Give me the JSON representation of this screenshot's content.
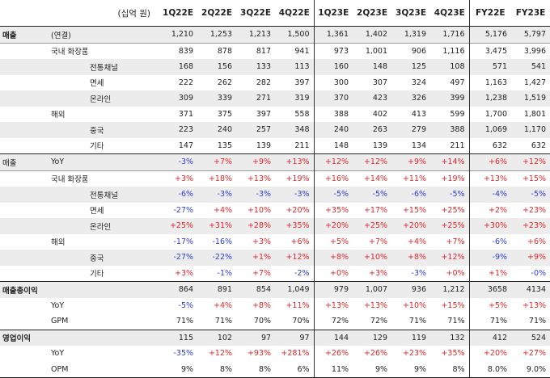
{
  "header": {
    "unit": "(십억 원)",
    "quarters": [
      "1Q22E",
      "2Q22E",
      "3Q22E",
      "4Q22E",
      "1Q23E",
      "2Q23E",
      "3Q23E",
      "4Q23E"
    ],
    "years": [
      "FY22E",
      "FY23E"
    ]
  },
  "rows": [
    {
      "c1": "매출",
      "c2": "(연결)",
      "c3": "",
      "v": [
        "1,210",
        "1,253",
        "1,213",
        "1,500",
        "1,361",
        "1,402",
        "1,319",
        "1,716",
        "5,176",
        "5,797"
      ]
    },
    {
      "c1": "",
      "c2": "국내 화장품",
      "c3": "",
      "v": [
        "839",
        "878",
        "817",
        "941",
        "973",
        "1,001",
        "906",
        "1,116",
        "3,475",
        "3,996"
      ]
    },
    {
      "c1": "",
      "c2": "",
      "c3": "전통채널",
      "v": [
        "168",
        "156",
        "133",
        "113",
        "160",
        "148",
        "125",
        "108",
        "571",
        "541"
      ]
    },
    {
      "c1": "",
      "c2": "",
      "c3": "면세",
      "v": [
        "222",
        "262",
        "282",
        "397",
        "300",
        "307",
        "324",
        "497",
        "1,163",
        "1,427"
      ]
    },
    {
      "c1": "",
      "c2": "",
      "c3": "온라인",
      "v": [
        "309",
        "339",
        "271",
        "319",
        "370",
        "423",
        "326",
        "399",
        "1,238",
        "1,519"
      ]
    },
    {
      "c1": "",
      "c2": "해외",
      "c3": "",
      "v": [
        "371",
        "375",
        "397",
        "558",
        "388",
        "402",
        "413",
        "599",
        "1,700",
        "1,801"
      ]
    },
    {
      "c1": "",
      "c2": "",
      "c3": "중국",
      "v": [
        "223",
        "240",
        "257",
        "348",
        "240",
        "263",
        "279",
        "388",
        "1,069",
        "1,170"
      ]
    },
    {
      "c1": "",
      "c2": "",
      "c3": "기타",
      "v": [
        "147",
        "135",
        "139",
        "211",
        "148",
        "139",
        "134",
        "211",
        "632",
        "632"
      ]
    },
    {
      "c1": "매출",
      "c2": "YoY",
      "c3": "",
      "v": [
        "-3%",
        "+7%",
        "+9%",
        "+13%",
        "+12%",
        "+12%",
        "+9%",
        "+14%",
        "+6%",
        "+12%"
      ]
    },
    {
      "c1": "",
      "c2": "국내 화장품",
      "c3": "",
      "v": [
        "+3%",
        "+18%",
        "+13%",
        "+19%",
        "+16%",
        "+14%",
        "+11%",
        "+19%",
        "+13%",
        "+15%"
      ]
    },
    {
      "c1": "",
      "c2": "",
      "c3": "전통채널",
      "v": [
        "-6%",
        "-3%",
        "-3%",
        "-3%",
        "-5%",
        "-5%",
        "-6%",
        "-5%",
        "-4%",
        "-5%"
      ]
    },
    {
      "c1": "",
      "c2": "",
      "c3": "면세",
      "v": [
        "-27%",
        "+4%",
        "+10%",
        "+20%",
        "+35%",
        "+17%",
        "+15%",
        "+25%",
        "+2%",
        "+23%"
      ]
    },
    {
      "c1": "",
      "c2": "",
      "c3": "온라인",
      "v": [
        "+25%",
        "+31%",
        "+28%",
        "+35%",
        "+20%",
        "+25%",
        "+20%",
        "+25%",
        "+30%",
        "+23%"
      ]
    },
    {
      "c1": "",
      "c2": "해외",
      "c3": "",
      "v": [
        "-17%",
        "-16%",
        "+3%",
        "+6%",
        "+5%",
        "+7%",
        "+4%",
        "+7%",
        "-6%",
        "+6%"
      ]
    },
    {
      "c1": "",
      "c2": "",
      "c3": "중국",
      "v": [
        "-27%",
        "-22%",
        "+1%",
        "+12%",
        "+8%",
        "+10%",
        "+8%",
        "+12%",
        "-9%",
        "+9%"
      ]
    },
    {
      "c1": "",
      "c2": "",
      "c3": "기타",
      "v": [
        "+3%",
        "-1%",
        "+7%",
        "-2%",
        "+0%",
        "+3%",
        "-3%",
        "+0%",
        "+1%",
        "-0%"
      ]
    },
    {
      "c1": "매출총이익",
      "c2": "",
      "c3": "",
      "v": [
        "864",
        "891",
        "854",
        "1,049",
        "979",
        "1,007",
        "936",
        "1,212",
        "3658",
        "4134"
      ]
    },
    {
      "c1": "",
      "c2": "YoY",
      "c3": "",
      "v": [
        "-5%",
        "+4%",
        "+8%",
        "+11%",
        "+13%",
        "+13%",
        "+10%",
        "+15%",
        "+5%",
        "+13%"
      ]
    },
    {
      "c1": "",
      "c2": "GPM",
      "c3": "",
      "v": [
        "71%",
        "71%",
        "70%",
        "70%",
        "72%",
        "72%",
        "71%",
        "71%",
        "71%",
        "71%"
      ]
    },
    {
      "c1": "영업이익",
      "c2": "",
      "c3": "",
      "v": [
        "115",
        "102",
        "97",
        "97",
        "144",
        "129",
        "119",
        "132",
        "412",
        "524"
      ]
    },
    {
      "c1": "",
      "c2": "YoY",
      "c3": "",
      "v": [
        "-35%",
        "+12%",
        "+93%",
        "+281%",
        "+26%",
        "+26%",
        "+23%",
        "+35%",
        "+20%",
        "+27%"
      ]
    },
    {
      "c1": "",
      "c2": "OPM",
      "c3": "",
      "v": [
        "9%",
        "8%",
        "8%",
        "6%",
        "11%",
        "9%",
        "9%",
        "8%",
        "8.0%",
        "9.0%"
      ]
    }
  ]
}
